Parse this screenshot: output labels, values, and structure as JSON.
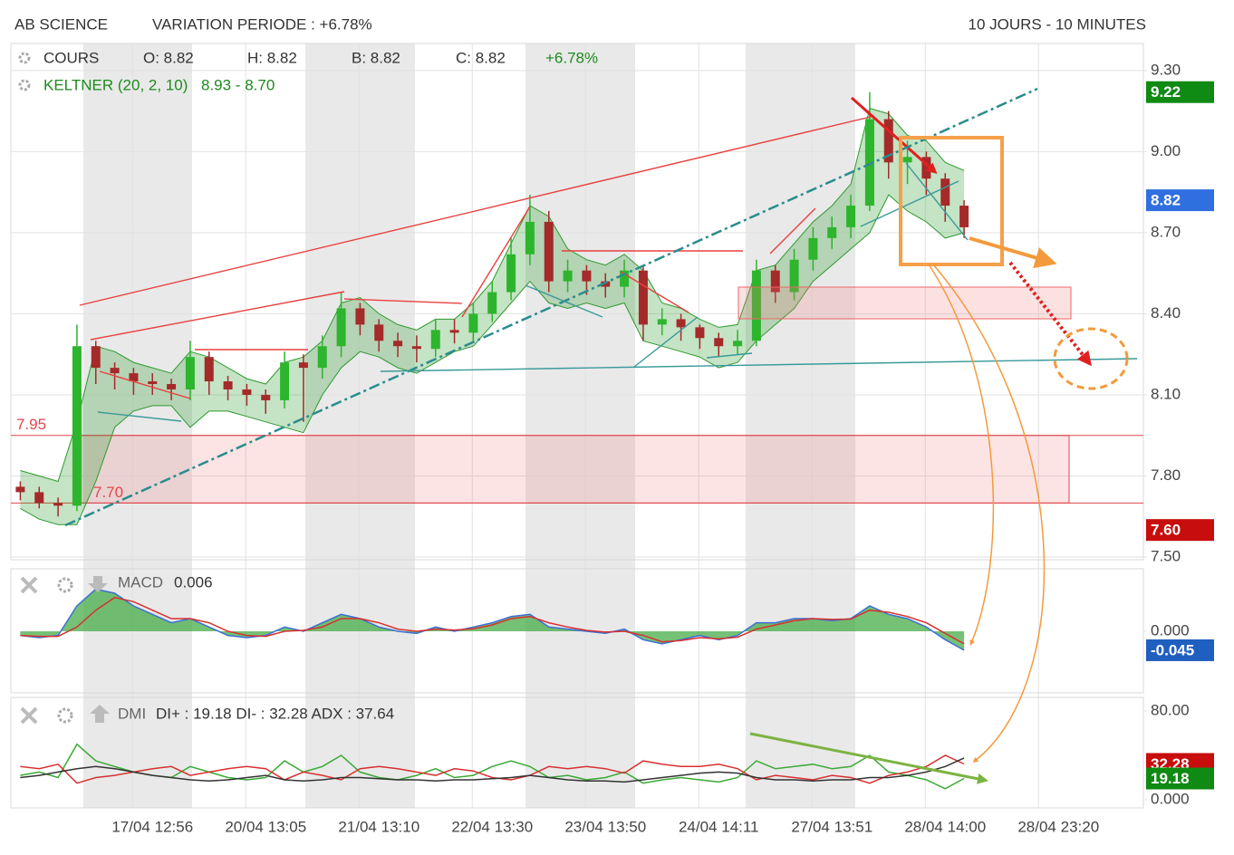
{
  "header": {
    "title": "AB SCIENCE",
    "variation": "VARIATION PERIODE : +6.78%",
    "period": "10 JOURS - 10 MINUTES"
  },
  "chart_data": [
    {
      "type": "candlestick",
      "legend": {
        "name": "COURS",
        "open": "O: 8.82",
        "high": "H: 8.82",
        "low": "B: 8.82",
        "close": "C: 8.82",
        "change": "+6.78%"
      },
      "overlay": {
        "name": "KELTNER (20, 2, 10)",
        "value": "8.93 - 8.70",
        "color": "#2e9a2e",
        "upper": [
          7.82,
          7.8,
          7.78,
          8.0,
          8.28,
          8.26,
          8.22,
          8.2,
          8.18,
          8.26,
          8.24,
          8.2,
          8.16,
          8.14,
          8.22,
          8.24,
          8.3,
          8.44,
          8.46,
          8.4,
          8.36,
          8.34,
          8.38,
          8.38,
          8.44,
          8.52,
          8.66,
          8.8,
          8.76,
          8.64,
          8.6,
          8.58,
          8.62,
          8.56,
          8.44,
          8.42,
          8.38,
          8.35,
          8.36,
          8.56,
          8.58,
          8.66,
          8.74,
          8.8,
          8.88,
          9.16,
          9.14,
          9.06,
          9.04,
          8.96,
          8.93,
          null,
          null,
          null,
          null,
          null,
          null,
          null,
          null,
          null
        ],
        "lower": [
          7.68,
          7.64,
          7.62,
          7.62,
          7.78,
          7.98,
          8.04,
          8.06,
          8.06,
          7.98,
          8.04,
          8.04,
          8.02,
          8.0,
          7.98,
          7.96,
          8.1,
          8.2,
          8.26,
          8.24,
          8.2,
          8.18,
          8.22,
          8.26,
          8.28,
          8.36,
          8.44,
          8.52,
          8.44,
          8.42,
          8.44,
          8.42,
          8.44,
          8.3,
          8.28,
          8.26,
          8.24,
          8.2,
          8.22,
          8.3,
          8.36,
          8.42,
          8.52,
          8.58,
          8.64,
          8.7,
          8.84,
          8.78,
          8.74,
          8.68,
          8.7,
          null,
          null,
          null,
          null,
          null,
          null,
          null,
          null,
          null
        ]
      },
      "categories": [
        null,
        null,
        null,
        null,
        null,
        null,
        null,
        "17/04 12:56",
        null,
        null,
        null,
        null,
        null,
        "20/04 13:05",
        null,
        null,
        null,
        null,
        null,
        "21/04 13:10",
        null,
        null,
        null,
        null,
        null,
        "22/04 13:30",
        null,
        null,
        null,
        null,
        null,
        "23/04 13:50",
        null,
        null,
        null,
        null,
        null,
        "24/04 14:11",
        null,
        null,
        null,
        null,
        null,
        "27/04 13:51",
        null,
        null,
        null,
        null,
        null,
        "28/04 14:00",
        null,
        null,
        null,
        null,
        null,
        "28/04 23:20",
        null,
        null,
        null,
        null
      ],
      "open": [
        7.76,
        7.74,
        7.7,
        7.69,
        8.28,
        8.2,
        8.18,
        8.15,
        8.14,
        8.12,
        8.24,
        8.15,
        8.12,
        8.1,
        8.08,
        8.22,
        8.2,
        8.28,
        8.42,
        8.36,
        8.3,
        8.28,
        8.27,
        8.34,
        8.33,
        8.4,
        8.48,
        8.62,
        8.74,
        8.52,
        8.56,
        8.52,
        8.5,
        8.56,
        8.36,
        8.38,
        8.35,
        8.31,
        8.28,
        8.3,
        8.56,
        8.48,
        8.6,
        8.68,
        8.72,
        8.8,
        9.12,
        8.96,
        8.98,
        8.9,
        8.8,
        null,
        null,
        null,
        null,
        null,
        null,
        null,
        null,
        null
      ],
      "high": [
        7.78,
        7.76,
        7.72,
        8.36,
        8.3,
        8.22,
        8.2,
        8.18,
        8.16,
        8.3,
        8.26,
        8.17,
        8.14,
        8.12,
        8.26,
        8.25,
        8.32,
        8.48,
        8.44,
        8.38,
        8.33,
        8.32,
        8.38,
        8.38,
        8.44,
        8.52,
        8.68,
        8.84,
        8.78,
        8.6,
        8.58,
        8.55,
        8.6,
        8.58,
        8.42,
        8.4,
        8.36,
        8.33,
        8.34,
        8.6,
        8.58,
        8.64,
        8.72,
        8.76,
        8.84,
        9.22,
        9.15,
        9.04,
        9.0,
        8.92,
        8.82,
        null,
        null,
        null,
        null,
        null,
        null,
        null,
        null,
        null
      ],
      "low": [
        7.71,
        7.68,
        7.65,
        7.67,
        8.14,
        8.12,
        8.1,
        8.1,
        8.08,
        8.08,
        8.1,
        8.08,
        8.06,
        8.03,
        8.05,
        8.0,
        8.16,
        8.24,
        8.32,
        8.26,
        8.24,
        8.22,
        8.24,
        8.29,
        8.3,
        8.37,
        8.45,
        8.58,
        8.48,
        8.48,
        8.47,
        8.46,
        8.46,
        8.3,
        8.32,
        8.3,
        8.27,
        8.24,
        8.25,
        8.28,
        8.44,
        8.45,
        8.56,
        8.64,
        8.68,
        8.78,
        8.9,
        8.88,
        8.84,
        8.74,
        8.68,
        null,
        null,
        null,
        null,
        null,
        null,
        null,
        null,
        null
      ],
      "close": [
        7.74,
        7.7,
        7.69,
        8.28,
        8.2,
        8.18,
        8.15,
        8.14,
        8.12,
        8.24,
        8.15,
        8.12,
        8.1,
        8.08,
        8.22,
        8.2,
        8.28,
        8.42,
        8.36,
        8.3,
        8.28,
        8.27,
        8.34,
        8.33,
        8.4,
        8.48,
        8.62,
        8.74,
        8.52,
        8.56,
        8.52,
        8.5,
        8.56,
        8.36,
        8.38,
        8.35,
        8.31,
        8.28,
        8.3,
        8.56,
        8.48,
        8.6,
        8.68,
        8.72,
        8.8,
        9.12,
        8.96,
        8.98,
        8.9,
        8.8,
        8.72,
        null,
        null,
        null,
        null,
        null,
        null,
        null,
        null,
        null
      ],
      "up_color": "#2db52d",
      "down_color": "#a52a2a",
      "ylim": [
        7.49,
        9.4
      ],
      "yticks": [
        {
          "value": 9.3,
          "label": "9.30"
        },
        {
          "value": 9.0,
          "label": "9.00"
        },
        {
          "value": 8.7,
          "label": "8.70"
        },
        {
          "value": 8.4,
          "label": "8.40"
        },
        {
          "value": 8.1,
          "label": "8.10"
        },
        {
          "value": 7.8,
          "label": "7.80"
        },
        {
          "value": 7.5,
          "label": "7.50"
        }
      ],
      "grid": true,
      "zones": [
        {
          "from": {
            "value": 7.7,
            "label": "7.70"
          },
          "to": {
            "value": 7.95,
            "label": "7.95"
          },
          "color": "#e0474c"
        }
      ],
      "price_tags": [
        {
          "value": 9.22,
          "label": "9.22",
          "color": "#0f8a13"
        },
        {
          "value": 8.82,
          "label": "8.82",
          "color": "#2f6fe0"
        },
        {
          "value": 7.6,
          "label": "7.60",
          "color": "#c80d0d"
        }
      ]
    },
    {
      "type": "line",
      "title": "MACD",
      "subtitle": "0.006",
      "area_color": "#3aa63a",
      "series": [
        {
          "color": "#3b6fd6",
          "values": [
            -0.01,
            -0.015,
            -0.01,
            0.06,
            0.1,
            0.09,
            0.06,
            0.04,
            0.02,
            0.03,
            0.01,
            -0.01,
            -0.015,
            -0.01,
            0.01,
            0.0,
            0.02,
            0.04,
            0.03,
            0.01,
            0.0,
            -0.005,
            0.01,
            0.0,
            0.01,
            0.02,
            0.035,
            0.04,
            0.01,
            0.005,
            0.0,
            -0.005,
            0.005,
            -0.02,
            -0.03,
            -0.02,
            -0.01,
            -0.02,
            -0.01,
            0.02,
            0.02,
            0.03,
            0.03,
            0.025,
            0.03,
            0.06,
            0.04,
            0.03,
            0.01,
            -0.02,
            -0.045,
            null,
            null,
            null,
            null,
            null,
            null,
            null,
            null,
            null
          ]
        },
        {
          "color": "#d83030",
          "values": [
            -0.01,
            -0.012,
            -0.012,
            0.01,
            0.05,
            0.08,
            0.07,
            0.05,
            0.03,
            0.03,
            0.02,
            0.0,
            -0.01,
            -0.012,
            0.0,
            0.002,
            0.01,
            0.03,
            0.03,
            0.02,
            0.005,
            0.0,
            0.005,
            0.003,
            0.006,
            0.015,
            0.03,
            0.035,
            0.02,
            0.01,
            0.002,
            -0.002,
            0.0,
            -0.01,
            -0.025,
            -0.022,
            -0.015,
            -0.018,
            -0.014,
            0.005,
            0.015,
            0.025,
            0.03,
            0.028,
            0.029,
            0.05,
            0.045,
            0.035,
            0.02,
            -0.005,
            -0.03,
            null,
            null,
            null,
            null,
            null,
            null,
            null,
            null,
            null
          ]
        }
      ],
      "ylim": [
        -0.146,
        0.148
      ],
      "yticks": [
        {
          "value": 0,
          "label": "0.000"
        }
      ],
      "grid": false,
      "price_tags": [
        {
          "value": -0.045,
          "label": "-0.045",
          "color": "#1f5fbf"
        }
      ]
    },
    {
      "type": "line",
      "title": "DMI",
      "subtitle": "DI+ : 19.18 DI- : 32.28 ADX : 37.64",
      "series": [
        {
          "color": "#3aaa35",
          "values": [
            22,
            25,
            20,
            50,
            35,
            30,
            25,
            22,
            20,
            30,
            25,
            20,
            18,
            20,
            35,
            25,
            30,
            40,
            25,
            20,
            18,
            22,
            28,
            20,
            22,
            30,
            35,
            30,
            20,
            22,
            18,
            20,
            25,
            15,
            18,
            20,
            18,
            16,
            20,
            35,
            28,
            30,
            32,
            28,
            30,
            40,
            25,
            22,
            18,
            10,
            19.18,
            null,
            null,
            null,
            null,
            null,
            null,
            null,
            null,
            null
          ]
        },
        {
          "color": "#d83030",
          "values": [
            30,
            28,
            32,
            15,
            20,
            22,
            25,
            28,
            30,
            22,
            25,
            28,
            30,
            28,
            18,
            25,
            22,
            18,
            28,
            30,
            28,
            25,
            22,
            28,
            26,
            20,
            18,
            22,
            30,
            28,
            30,
            28,
            24,
            35,
            32,
            30,
            30,
            32,
            28,
            18,
            22,
            20,
            18,
            22,
            20,
            15,
            22,
            25,
            30,
            40,
            32.28,
            null,
            null,
            null,
            null,
            null,
            null,
            null,
            null,
            null
          ]
        },
        {
          "color": "#333333",
          "values": [
            20,
            22,
            25,
            28,
            30,
            28,
            25,
            22,
            20,
            18,
            17,
            18,
            20,
            22,
            18,
            17,
            18,
            20,
            20,
            19,
            18,
            18,
            17,
            18,
            18,
            19,
            20,
            22,
            20,
            18,
            17,
            17,
            16,
            18,
            20,
            22,
            24,
            25,
            24,
            20,
            18,
            18,
            17,
            18,
            18,
            20,
            20,
            22,
            25,
            30,
            37.64,
            null,
            null,
            null,
            null,
            null,
            null,
            null,
            null,
            null
          ]
        }
      ],
      "ylim": [
        -7.3,
        92.2
      ],
      "yticks": [
        {
          "value": 80,
          "label": "80.00"
        },
        {
          "value": 0,
          "label": "0.000"
        }
      ],
      "grid": false,
      "price_tags": [
        {
          "value": 32.28,
          "label": "32.28",
          "color": "#c80d0d"
        },
        {
          "value": 19.18,
          "label": "19.18",
          "color": "#0f8a13"
        }
      ]
    }
  ]
}
